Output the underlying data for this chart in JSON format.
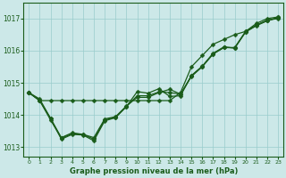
{
  "xlabel": "Graphe pression niveau de la mer (hPa)",
  "background_color": "#cce8e8",
  "grid_color": "#99cccc",
  "line_color": "#1a5c1a",
  "ylim": [
    1012.7,
    1017.5
  ],
  "xlim": [
    -0.5,
    23.5
  ],
  "yticks": [
    1013,
    1014,
    1015,
    1016,
    1017
  ],
  "xticks": [
    0,
    1,
    2,
    3,
    4,
    5,
    6,
    7,
    8,
    9,
    10,
    11,
    12,
    13,
    14,
    15,
    16,
    17,
    18,
    19,
    20,
    21,
    22,
    23
  ],
  "series": [
    [
      1014.7,
      1014.45,
      1014.45,
      1014.45,
      1014.45,
      1014.45,
      1014.45,
      1014.45,
      1014.45,
      1014.45,
      1014.45,
      1014.45,
      1014.45,
      1014.45,
      1014.7,
      1015.5,
      1015.85,
      1016.2,
      1016.35,
      1016.5,
      1016.6,
      1016.85,
      1017.0,
      1017.05
    ],
    [
      1014.7,
      1014.45,
      1013.9,
      1013.3,
      1013.45,
      1013.4,
      1013.3,
      1013.88,
      1013.95,
      1014.28,
      1014.55,
      1014.55,
      1014.7,
      1014.8,
      1014.65,
      1015.2,
      1015.5,
      1015.9,
      1016.1,
      1016.1,
      1016.6,
      1016.8,
      1016.95,
      1017.0
    ],
    [
      1014.7,
      1014.5,
      1013.9,
      1013.25,
      1013.4,
      1013.38,
      1013.2,
      1013.82,
      1013.92,
      1014.26,
      1014.73,
      1014.68,
      1014.82,
      1014.58,
      1014.6,
      1015.23,
      1015.52,
      1015.92,
      1016.12,
      1016.08,
      1016.58,
      1016.78,
      1016.93,
      1017.04
    ],
    [
      1014.7,
      1014.45,
      1013.85,
      1013.28,
      1013.42,
      1013.4,
      1013.25,
      1013.85,
      1013.93,
      1014.27,
      1014.6,
      1014.6,
      1014.72,
      1014.7,
      1014.65,
      1015.22,
      1015.51,
      1015.9,
      1016.1,
      1016.09,
      1016.59,
      1016.79,
      1016.94,
      1017.02
    ]
  ],
  "marker_size": 2.5,
  "linewidth": 0.9
}
